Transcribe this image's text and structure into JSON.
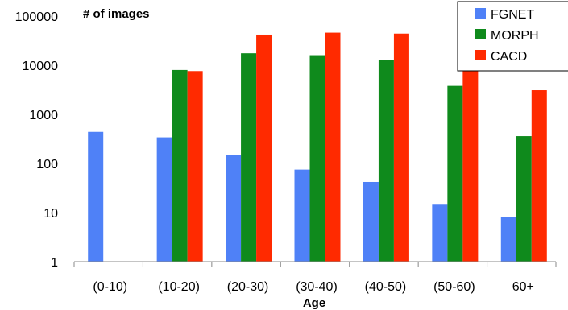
{
  "chart_data": {
    "type": "bar",
    "ylabel": "# of images",
    "xlabel": "Age",
    "yscale": "log",
    "ylim": [
      1,
      100000
    ],
    "yticks": [
      "1",
      "10",
      "100",
      "1000",
      "10000",
      "100000"
    ],
    "categories": [
      "(0-10)",
      "(10-20)",
      "(20-30)",
      "(30-40)",
      "(40-50)",
      "(50-60)",
      "60+"
    ],
    "series": [
      {
        "name": "FGNET",
        "color": "#4f81f7",
        "values": [
          440,
          340,
          150,
          75,
          42,
          15,
          8
        ]
      },
      {
        "name": "MORPH",
        "color": "#0f8a1c",
        "values": [
          null,
          8000,
          17500,
          16000,
          13000,
          3800,
          360
        ]
      },
      {
        "name": "CACD",
        "color": "#ff2a00",
        "values": [
          null,
          7600,
          42000,
          46000,
          44000,
          32000,
          3100
        ]
      }
    ],
    "legend": "top-right",
    "grid": false
  }
}
